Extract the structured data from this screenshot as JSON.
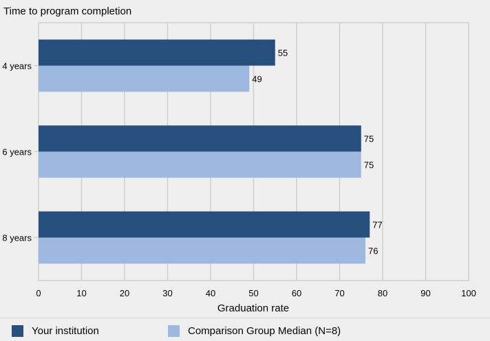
{
  "chart_data": {
    "type": "bar",
    "orientation": "horizontal",
    "title": "Time to program completion",
    "categories": [
      "4 years",
      "6 years",
      "8 years"
    ],
    "series": [
      {
        "name": "Your institution",
        "values": [
          55,
          75,
          77
        ],
        "color": "#264f7d"
      },
      {
        "name": "Comparison Group Median (N=8)",
        "values": [
          49,
          75,
          76
        ],
        "color": "#9db9df"
      }
    ],
    "xlabel": "Graduation rate",
    "ylabel": "",
    "xlim": [
      0,
      100
    ],
    "xticks": [
      0,
      10,
      20,
      30,
      40,
      50,
      60,
      70,
      80,
      90,
      100
    ],
    "grid": true,
    "legend_position": "bottom"
  }
}
